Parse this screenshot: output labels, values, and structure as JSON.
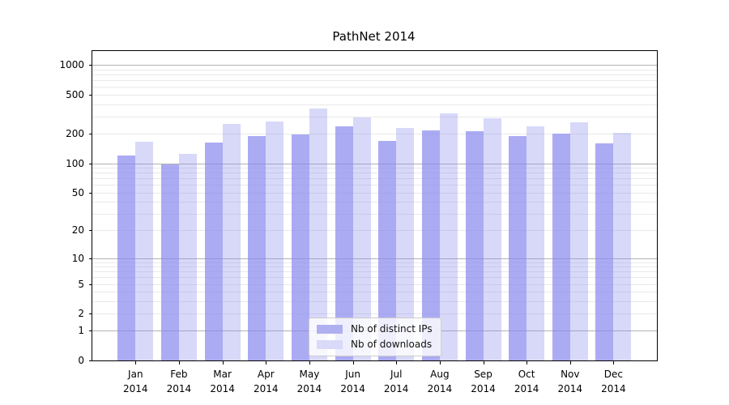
{
  "title": "PathNet 2014",
  "chart_data": {
    "type": "bar",
    "title": "PathNet 2014",
    "categories": [
      "Jan 2014",
      "Feb 2014",
      "Mar 2014",
      "Apr 2014",
      "May 2014",
      "Jun 2014",
      "Jul 2014",
      "Aug 2014",
      "Sep 2014",
      "Oct 2014",
      "Nov 2014",
      "Dec 2014"
    ],
    "series": [
      {
        "name": "Nb of distinct IPs",
        "base_color": "#8888ee",
        "alpha": 0.7,
        "values": [
          120,
          97,
          162,
          188,
          197,
          240,
          170,
          215,
          213,
          188,
          202,
          160
        ]
      },
      {
        "name": "Nb of downloads",
        "base_color": "#8888ee",
        "alpha": 0.33,
        "values": [
          166,
          125,
          252,
          265,
          360,
          295,
          229,
          324,
          291,
          240,
          262,
          203
        ]
      }
    ],
    "xlabel": "",
    "ylabel": "",
    "yscale": "log10(1+v)",
    "yticks": [
      0,
      1,
      2,
      5,
      10,
      20,
      50,
      100,
      200,
      500,
      1000
    ],
    "ylim": [
      0,
      1400
    ],
    "grid": "horizontal major+minor",
    "legend_position": "inside lower-center"
  },
  "legend": {
    "items": [
      {
        "label": "Nb of distinct IPs",
        "swatch": "#b0b0f0"
      },
      {
        "label": "Nb of downloads",
        "swatch": "#d9d9f8"
      }
    ]
  },
  "colors": {
    "major_grid": "#b2b2b2",
    "minor_grid": "#e9e9e9",
    "spine": "#000000",
    "legend_border": "#cccccc"
  }
}
